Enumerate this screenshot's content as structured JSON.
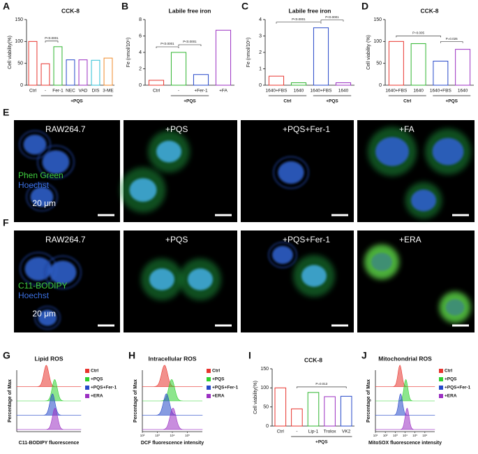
{
  "chart_data": [
    {
      "type": "bar",
      "label": "A",
      "title": "CCK-8",
      "ylabel": "Cell viability(%)",
      "categories": [
        "Ctrl",
        "-",
        "Fer-1",
        "NEC",
        "VAD",
        "DIS",
        "3-ME"
      ],
      "values": [
        100,
        49,
        88,
        58,
        58,
        57,
        62
      ],
      "colors": [
        "#e8342e",
        "#e8342e",
        "#2fb52f",
        "#2548c9",
        "#9b2fc2",
        "#2cbfd6",
        "#f08a2a"
      ],
      "ylim": [
        0,
        150
      ],
      "yticks": [
        0,
        50,
        100,
        150
      ],
      "groups": [
        {
          "label": "+PQS",
          "span": [
            1,
            6
          ]
        }
      ],
      "annotations": [
        {
          "text": "P<0.0001",
          "span": [
            1,
            2
          ]
        }
      ]
    },
    {
      "type": "bar",
      "label": "B",
      "title": "Labile free iron",
      "ylabel": "Fe (nmol/10⁶)",
      "categories": [
        "Ctrl",
        "-",
        "+Fer-1",
        "+FA"
      ],
      "values": [
        0.6,
        4.0,
        1.3,
        6.7
      ],
      "colors": [
        "#e8342e",
        "#2fb52f",
        "#2548c9",
        "#9b2fc2"
      ],
      "ylim": [
        0,
        8
      ],
      "yticks": [
        0,
        2,
        4,
        6,
        8
      ],
      "groups": [
        {
          "label": "+PQS",
          "span": [
            1,
            2
          ]
        }
      ],
      "annotations": [
        {
          "text": "P<0.0001",
          "span": [
            0,
            1
          ]
        },
        {
          "text": "P<0.0001",
          "span": [
            1,
            2
          ]
        }
      ]
    },
    {
      "type": "bar",
      "label": "C",
      "title": "Labile free iron",
      "ylabel": "Fe (nmol/10⁶)",
      "categories": [
        "1640+FBS",
        "1640",
        "1640+FBS",
        "1640"
      ],
      "values": [
        0.55,
        0.15,
        3.5,
        0.15
      ],
      "colors": [
        "#e8342e",
        "#2fb52f",
        "#2548c9",
        "#9b2fc2"
      ],
      "ylim": [
        0,
        4
      ],
      "yticks": [
        0,
        1,
        2,
        3,
        4
      ],
      "groups": [
        {
          "label": "Ctrl",
          "span": [
            0,
            1
          ]
        },
        {
          "label": "+PQS",
          "span": [
            2,
            3
          ]
        }
      ],
      "annotations": [
        {
          "text": "P<0.0001",
          "span": [
            0,
            2
          ]
        },
        {
          "text": "P<0.0001",
          "span": [
            2,
            3
          ]
        }
      ]
    },
    {
      "type": "bar",
      "label": "D",
      "title": "CCK-8",
      "ylabel": "Cell viability (%)",
      "categories": [
        "1640+FBS",
        "1640",
        "1640+FBS",
        "1640"
      ],
      "values": [
        100,
        95,
        55,
        82
      ],
      "colors": [
        "#e8342e",
        "#2fb52f",
        "#2548c9",
        "#9b2fc2"
      ],
      "ylim": [
        0,
        150
      ],
      "yticks": [
        0,
        50,
        100,
        150
      ],
      "groups": [
        {
          "label": "Ctrl",
          "span": [
            0,
            1
          ]
        },
        {
          "label": "+PQS",
          "span": [
            2,
            3
          ]
        }
      ],
      "annotations": [
        {
          "text": "P=0.005",
          "span": [
            0,
            2
          ]
        },
        {
          "text": "P=0.026",
          "span": [
            2,
            3
          ]
        }
      ]
    },
    {
      "type": "density",
      "label": "G",
      "title": "Lipid ROS",
      "ylabel": "Percentage of Max",
      "xlabel": "C11-BODIPY fluorescence",
      "xlim": [
        10,
        1000000
      ],
      "series": [
        {
          "name": "Ctrl",
          "color": "#e8342e",
          "peak": 2000
        },
        {
          "name": "+PQS",
          "color": "#2fd12f",
          "peak": 9000
        },
        {
          "name": "+PQS+Fer-1",
          "color": "#2548c9",
          "peak": 6000
        },
        {
          "name": "+ERA",
          "color": "#9b2fc2",
          "peak": 9500
        }
      ]
    },
    {
      "type": "density",
      "label": "H",
      "title": "Intracellular ROS",
      "ylabel": "Percentage of Max",
      "xlabel": "DCF fluorescence intensity",
      "xlim": [
        100,
        1000000
      ],
      "xticks": [
        {
          "value": 100,
          "label": "10²"
        },
        {
          "value": 1000,
          "label": "10³"
        },
        {
          "value": 10000,
          "label": "10⁴"
        },
        {
          "value": 100000,
          "label": "10⁵"
        }
      ],
      "series": [
        {
          "name": "Ctrl",
          "color": "#e8342e",
          "peak": 3000
        },
        {
          "name": "+PQS",
          "color": "#2fd12f",
          "peak": 9000
        },
        {
          "name": "+PQS+Fer-1",
          "color": "#2548c9",
          "peak": 4000
        },
        {
          "name": "+ERA",
          "color": "#9b2fc2",
          "peak": 11000
        }
      ]
    },
    {
      "type": "bar",
      "label": "I",
      "title": "CCK-8",
      "ylabel": "Cell viability(%)",
      "categories": [
        "Ctrl",
        "-",
        "Lip-1",
        "Trolox",
        "VK2"
      ],
      "values": [
        100,
        45,
        88,
        77,
        78
      ],
      "colors": [
        "#e8342e",
        "#e8342e",
        "#2fb52f",
        "#9b2fc2",
        "#2548c9"
      ],
      "ylim": [
        0,
        150
      ],
      "yticks": [
        0,
        50,
        100,
        150
      ],
      "groups": [
        {
          "label": "+PQS",
          "span": [
            1,
            4
          ]
        }
      ],
      "annotations": [
        {
          "text": "P=0.013",
          "span": [
            1,
            4
          ]
        }
      ]
    },
    {
      "type": "density",
      "label": "J",
      "title": "Mitochondrial ROS",
      "ylabel": "Percentage of Max",
      "xlabel": "MitoSOX fluorescence intensity",
      "xlim": [
        10,
        10000000
      ],
      "xticks": [
        {
          "value": 10,
          "label": "10¹"
        },
        {
          "value": 100,
          "label": "10²"
        },
        {
          "value": 1000,
          "label": "10³"
        },
        {
          "value": 10000,
          "label": "10⁴"
        },
        {
          "value": 100000,
          "label": "10⁵"
        },
        {
          "value": 1000000,
          "label": "10⁶"
        }
      ],
      "series": [
        {
          "name": "Ctrl",
          "color": "#e8342e",
          "peak": 3000
        },
        {
          "name": "+PQS",
          "color": "#2fd12f",
          "peak": 12000
        },
        {
          "name": "+PQS+Fer-1",
          "color": "#2548c9",
          "peak": 3500
        },
        {
          "name": "+ERA",
          "color": "#9b2fc2",
          "peak": 16000
        }
      ]
    }
  ],
  "images": [
    {
      "label": "E",
      "panels": [
        "RAW264.7",
        "+PQS",
        "+PQS+Fer-1",
        "+FA"
      ],
      "stains": [
        "Phen Green",
        "Hoechst"
      ],
      "scale": "20 μm"
    },
    {
      "label": "F",
      "panels": [
        "RAW264.7",
        "+PQS",
        "+PQS+Fer-1",
        "+ERA"
      ],
      "stains": [
        "C11-BODIPY",
        "Hoechst"
      ],
      "scale": "20 μm"
    }
  ]
}
